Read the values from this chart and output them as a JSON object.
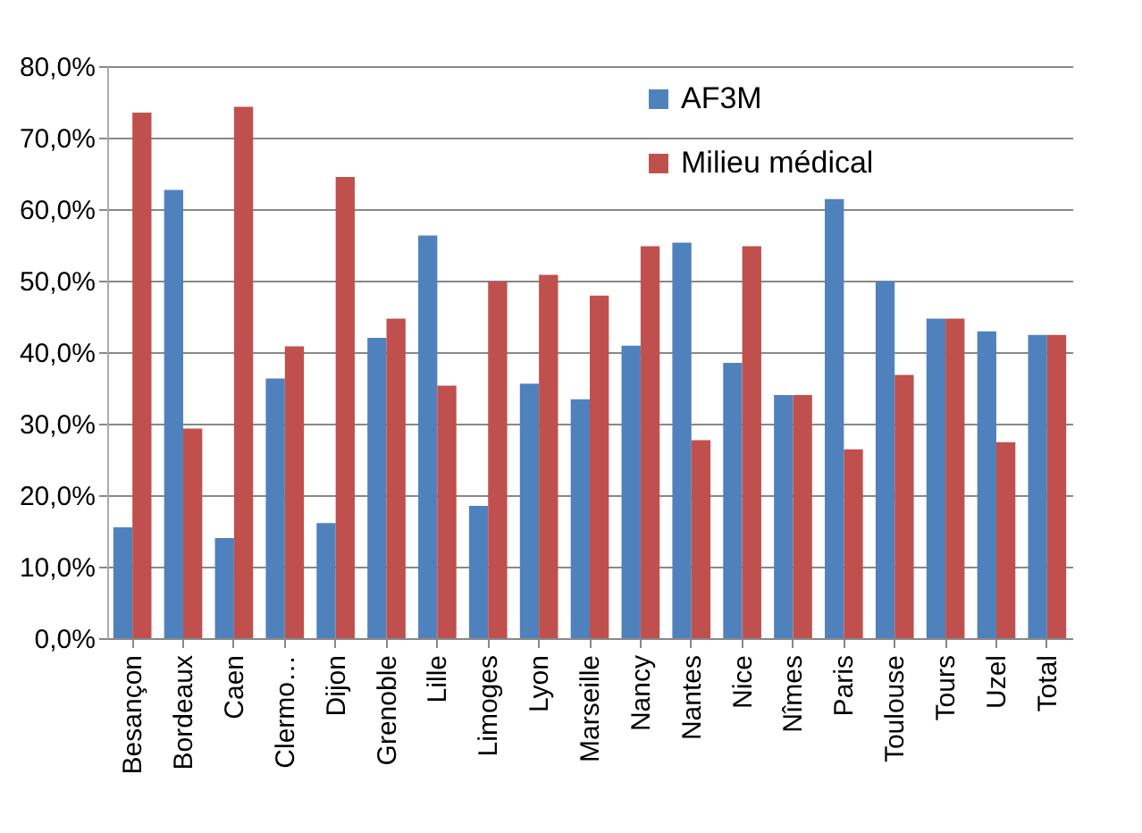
{
  "chart_data": {
    "type": "bar",
    "categories": [
      "Besançon",
      "Bordeaux",
      "Caen",
      "Clermo…",
      "Dijon",
      "Grenoble",
      "Lille",
      "Limoges",
      "Lyon",
      "Marseille",
      "Nancy",
      "Nantes",
      "Nice",
      "Nîmes",
      "Paris",
      "Toulouse",
      "Tours",
      "Uzel",
      "Total"
    ],
    "series": [
      {
        "name": "AF3M",
        "color": "#4f81bd",
        "values": [
          15.5,
          62.7,
          14.0,
          36.3,
          16.1,
          42.0,
          56.3,
          18.5,
          35.6,
          33.4,
          40.9,
          55.3,
          38.5,
          34.0,
          61.4,
          49.9,
          44.7,
          42.9,
          42.4
        ]
      },
      {
        "name": "Milieu médical",
        "color": "#c0504d",
        "values": [
          73.5,
          29.3,
          74.3,
          40.8,
          64.5,
          44.7,
          35.3,
          49.9,
          50.8,
          47.9,
          54.8,
          27.7,
          54.8,
          34.0,
          26.4,
          36.8,
          44.7,
          27.4,
          42.4
        ]
      }
    ],
    "ylim": [
      0,
      80
    ],
    "yticks": [
      {
        "value": 0,
        "label": "0,0%"
      },
      {
        "value": 10,
        "label": "10,0%"
      },
      {
        "value": 20,
        "label": "20,0%"
      },
      {
        "value": 30,
        "label": "30,0%"
      },
      {
        "value": 40,
        "label": "40,0%"
      },
      {
        "value": 50,
        "label": "50,0%"
      },
      {
        "value": 60,
        "label": "60,0%"
      },
      {
        "value": 70,
        "label": "70,0%"
      },
      {
        "value": 80,
        "label": "80,0%"
      }
    ],
    "grid": "y",
    "legend": "top right"
  }
}
